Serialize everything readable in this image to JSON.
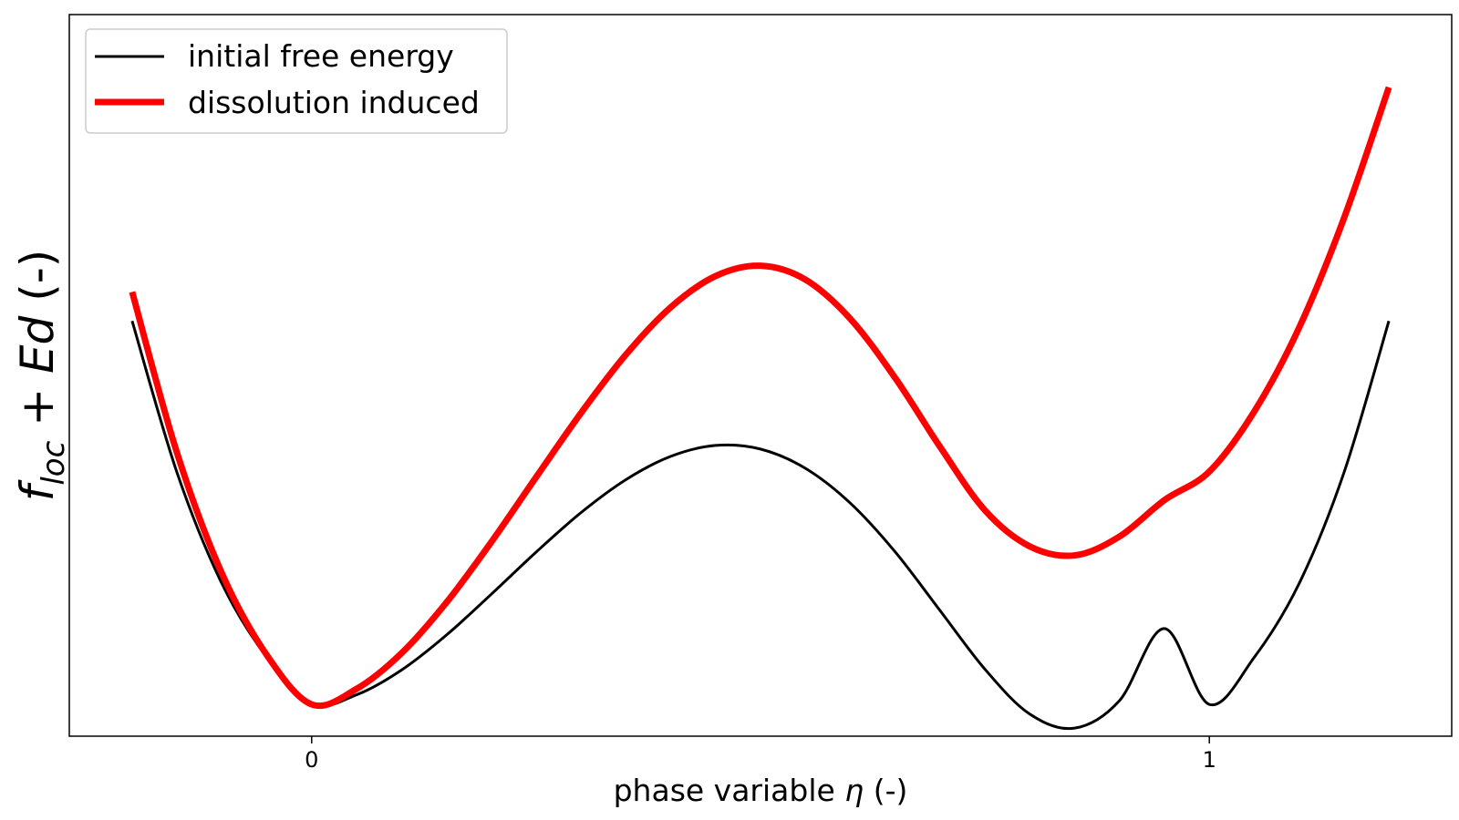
{
  "chart_data": {
    "type": "line",
    "xlabel_text": "phase variable ",
    "xlabel_symbol": "η",
    "xlabel_unit": " (-)",
    "ylabel_main": "f",
    "ylabel_sub": "loc",
    "ylabel_rest": " + ",
    "ylabel_symbol": "Ed",
    "ylabel_unit": " (-)",
    "xticks": [
      {
        "value": 0,
        "label": "0"
      },
      {
        "value": 1,
        "label": "1"
      }
    ],
    "xlim": [
      -0.27,
      1.27
    ],
    "ylim": [
      -0.035,
      0.76
    ],
    "yticks_visible": false,
    "grid": false,
    "legend_position": "upper-left",
    "series": [
      {
        "name": "initial free energy",
        "color": "#000000",
        "line_width": 3,
        "x": [
          -0.2,
          -0.15,
          -0.1,
          -0.05,
          0.0,
          0.05,
          0.1,
          0.15,
          0.2,
          0.25,
          0.3,
          0.35,
          0.4,
          0.45,
          0.5,
          0.55,
          0.6,
          0.65,
          0.7,
          0.75,
          0.8,
          0.85,
          0.9,
          0.95,
          1.0,
          1.05,
          1.1,
          1.15,
          1.2
        ],
        "y": [
          0.4224,
          0.2554,
          0.1331,
          0.0518,
          0.0,
          0.0106,
          0.0378,
          0.0763,
          0.1213,
          0.1678,
          0.2113,
          0.2476,
          0.2733,
          0.2853,
          0.2813,
          0.2601,
          0.2218,
          0.1681,
          0.1034,
          0.0388,
          -0.0107,
          -0.0261,
          0.0043,
          0.0836,
          0.0,
          0.0518,
          0.1331,
          0.2554,
          0.4224
        ]
      },
      {
        "name": "dissolution induced",
        "color": "#ff0000",
        "line_width": 7,
        "x": [
          -0.2,
          -0.15,
          -0.1,
          -0.05,
          0.0,
          0.05,
          0.1,
          0.15,
          0.2,
          0.25,
          0.3,
          0.35,
          0.4,
          0.45,
          0.5,
          0.55,
          0.6,
          0.65,
          0.7,
          0.75,
          0.8,
          0.85,
          0.9,
          0.95,
          1.0,
          1.05,
          1.1,
          1.15,
          1.2
        ],
        "y": [
          0.4544,
          0.2771,
          0.1444,
          0.0544,
          0.0,
          0.0171,
          0.0563,
          0.1121,
          0.1787,
          0.2503,
          0.321,
          0.3853,
          0.4375,
          0.472,
          0.4833,
          0.468,
          0.4249,
          0.3597,
          0.2838,
          0.2139,
          0.1741,
          0.1642,
          0.185,
          0.2251,
          0.2565,
          0.3226,
          0.415,
          0.5357,
          0.6798
        ]
      }
    ]
  }
}
